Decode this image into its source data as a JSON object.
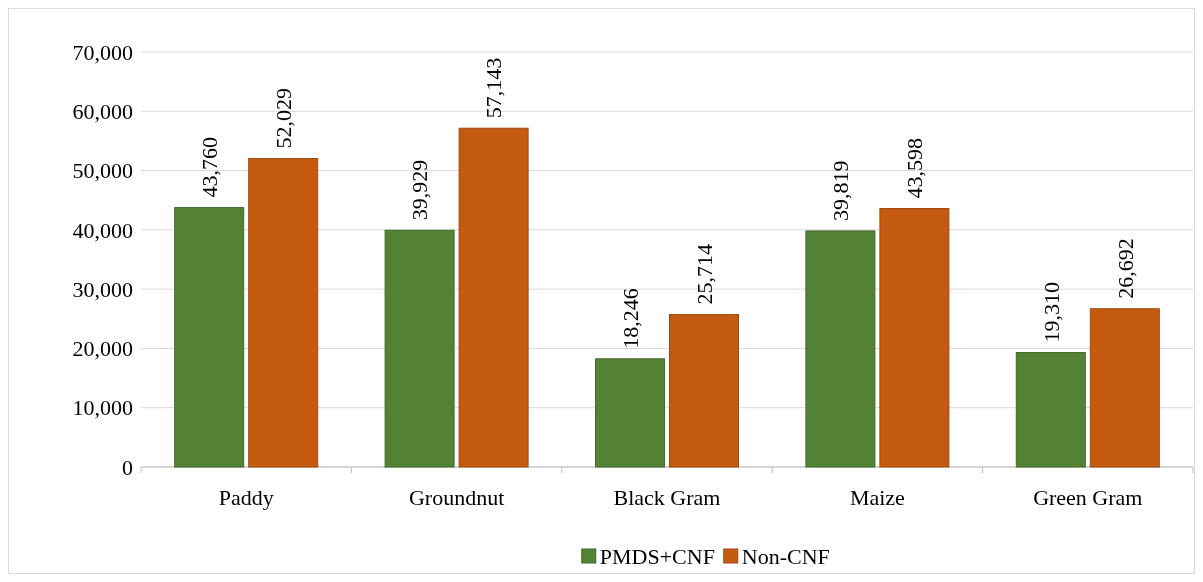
{
  "chart_data": {
    "type": "bar",
    "categories": [
      "Paddy",
      "Groundnut",
      "Black Gram",
      "Maize",
      "Green Gram"
    ],
    "series": [
      {
        "name": "PMDS+CNF",
        "color": "#548235",
        "values": [
          43760,
          39929,
          18246,
          39819,
          19310
        ],
        "value_labels": [
          "43,760",
          "39,929",
          "18,246",
          "39,819",
          "19,310"
        ]
      },
      {
        "name": "Non-CNF",
        "color": "#c55a11",
        "values": [
          52029,
          57143,
          25714,
          43598,
          26692
        ],
        "value_labels": [
          "52,029",
          "57,143",
          "25,714",
          "43,598",
          "26,692"
        ]
      }
    ],
    "ylim": [
      0,
      70000
    ],
    "yticks": [
      {
        "value": 0,
        "label": "0"
      },
      {
        "value": 10000,
        "label": "10,000"
      },
      {
        "value": 20000,
        "label": "20,000"
      },
      {
        "value": 30000,
        "label": "30,000"
      },
      {
        "value": 40000,
        "label": "40,000"
      },
      {
        "value": 50000,
        "label": "50,000"
      },
      {
        "value": 60000,
        "label": "60,000"
      },
      {
        "value": 70000,
        "label": "70,000"
      }
    ],
    "grid": "y",
    "legend": "bottom"
  }
}
